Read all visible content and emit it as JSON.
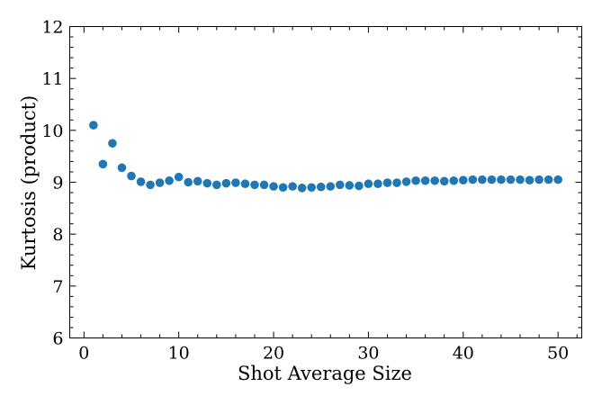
{
  "chart_data": {
    "type": "scatter",
    "title": "",
    "xlabel": "Shot Average Size",
    "ylabel": "Kurtosis (product)",
    "xlim": [
      -1.5,
      52.5
    ],
    "ylim": [
      6,
      12
    ],
    "x_ticks": [
      0,
      10,
      20,
      30,
      40,
      50
    ],
    "y_ticks": [
      6,
      7,
      8,
      9,
      10,
      11,
      12
    ],
    "x_tick_labels": [
      "0",
      "10",
      "20",
      "30",
      "40",
      "50"
    ],
    "y_tick_labels": [
      "6",
      "7",
      "8",
      "9",
      "10",
      "11",
      "12"
    ],
    "grid": false,
    "marker_color": "#1f77b4",
    "series": [
      {
        "x": [
          1,
          2,
          3,
          4,
          5,
          6,
          7,
          8,
          9,
          10,
          11,
          12,
          13,
          14,
          15,
          16,
          17,
          18,
          19,
          20,
          21,
          22,
          23,
          24,
          25,
          26,
          27,
          28,
          29,
          30,
          31,
          32,
          33,
          34,
          35,
          36,
          37,
          38,
          39,
          40,
          41,
          42,
          43,
          44,
          45,
          46,
          47,
          48,
          49,
          50
        ],
        "y": [
          10.1,
          9.35,
          9.75,
          9.28,
          9.12,
          9.01,
          8.95,
          8.99,
          9.03,
          9.1,
          9.0,
          9.02,
          8.98,
          8.95,
          8.98,
          8.99,
          8.97,
          8.95,
          8.95,
          8.92,
          8.9,
          8.92,
          8.89,
          8.9,
          8.91,
          8.92,
          8.95,
          8.94,
          8.93,
          8.97,
          8.97,
          8.99,
          8.99,
          9.01,
          9.03,
          9.03,
          9.03,
          9.02,
          9.03,
          9.04,
          9.05,
          9.05,
          9.05,
          9.05,
          9.05,
          9.05,
          9.04,
          9.05,
          9.05,
          9.05
        ]
      }
    ]
  }
}
